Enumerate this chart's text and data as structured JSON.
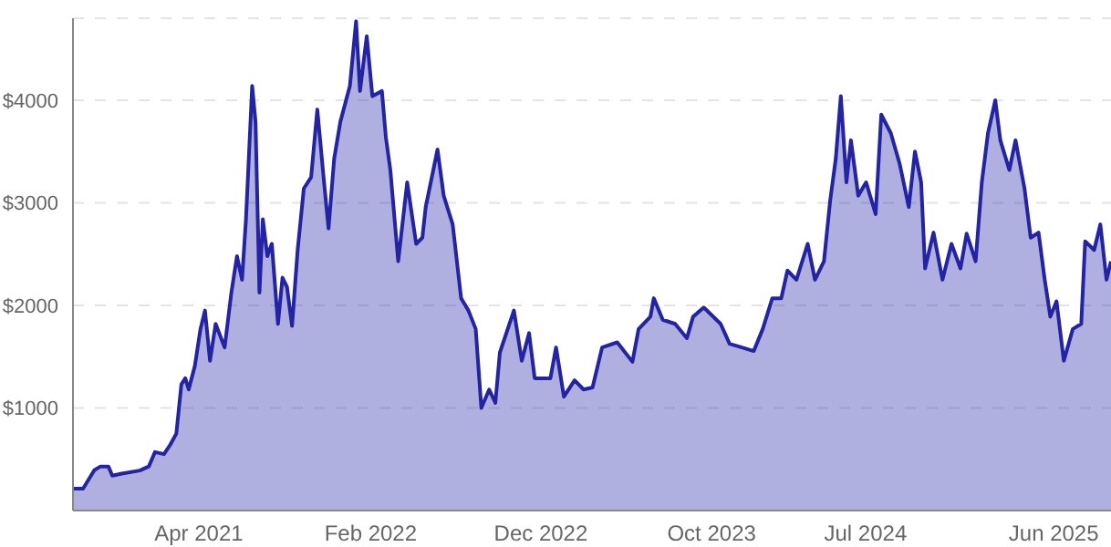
{
  "chart_data": {
    "type": "area",
    "x": [
      "2020-08-20",
      "2020-09-07",
      "2020-09-27",
      "2020-10-08",
      "2020-10-22",
      "2020-10-29",
      "2020-11-15",
      "2020-12-17",
      "2021-01-02",
      "2021-01-13",
      "2021-01-29",
      "2021-02-09",
      "2021-02-20",
      "2021-03-01",
      "2021-03-08",
      "2021-03-14",
      "2021-03-25",
      "2021-04-04",
      "2021-04-12",
      "2021-04-21",
      "2021-05-01",
      "2021-05-17",
      "2021-05-29",
      "2021-06-08",
      "2021-06-17",
      "2021-06-24",
      "2021-07-05",
      "2021-07-11",
      "2021-07-18",
      "2021-07-24",
      "2021-08-01",
      "2021-08-09",
      "2021-08-20",
      "2021-08-28",
      "2021-09-05",
      "2021-09-14",
      "2021-09-24",
      "2021-10-05",
      "2021-10-18",
      "2021-10-29",
      "2021-11-10",
      "2021-11-18",
      "2021-11-28",
      "2021-12-09",
      "2021-12-26",
      "2022-01-06",
      "2022-01-13",
      "2022-01-25",
      "2022-02-04",
      "2022-02-21",
      "2022-02-28",
      "2022-03-08",
      "2022-03-22",
      "2022-04-07",
      "2022-04-23",
      "2022-05-04",
      "2022-05-10",
      "2022-05-31",
      "2022-06-11",
      "2022-06-27",
      "2022-07-12",
      "2022-07-25",
      "2022-08-07",
      "2022-08-17",
      "2022-08-31",
      "2022-09-11",
      "2022-09-19",
      "2022-10-14",
      "2022-10-28",
      "2022-11-10",
      "2022-11-20",
      "2022-12-18",
      "2022-12-28",
      "2023-01-11",
      "2023-01-30",
      "2023-02-15",
      "2023-03-03",
      "2023-03-20",
      "2023-04-16",
      "2023-05-13",
      "2023-05-24",
      "2023-06-14",
      "2023-06-20",
      "2023-07-06",
      "2023-07-28",
      "2023-08-18",
      "2023-08-29",
      "2023-09-17",
      "2023-10-17",
      "2023-11-02",
      "2023-11-24",
      "2023-12-15",
      "2023-12-31",
      "2024-01-17",
      "2024-02-02",
      "2024-02-13",
      "2024-02-29",
      "2024-03-20",
      "2024-04-02",
      "2024-04-18",
      "2024-04-29",
      "2024-05-09",
      "2024-05-18",
      "2024-05-28",
      "2024-06-05",
      "2024-06-18",
      "2024-07-02",
      "2024-07-19",
      "2024-07-29",
      "2024-08-15",
      "2024-08-31",
      "2024-09-16",
      "2024-09-27",
      "2024-10-08",
      "2024-10-15",
      "2024-10-30",
      "2024-11-15",
      "2024-12-01",
      "2024-12-17",
      "2024-12-28",
      "2025-01-13",
      "2025-01-24",
      "2025-02-04",
      "2025-02-17",
      "2025-02-26",
      "2025-03-14",
      "2025-03-25",
      "2025-04-10",
      "2025-04-21",
      "2025-05-05",
      "2025-05-16",
      "2025-05-26",
      "2025-06-06",
      "2025-06-19",
      "2025-07-05",
      "2025-07-20",
      "2025-07-27",
      "2025-08-12",
      "2025-08-23",
      "2025-09-03",
      "2025-09-11"
    ],
    "values": [
      214,
      214,
      393,
      430,
      430,
      340,
      360,
      390,
      430,
      570,
      550,
      640,
      750,
      1230,
      1290,
      1180,
      1410,
      1770,
      1950,
      1460,
      1820,
      1590,
      2125,
      2480,
      2250,
      2840,
      4140,
      3790,
      2125,
      2840,
      2480,
      2600,
      1820,
      2270,
      2180,
      1800,
      2540,
      3140,
      3250,
      3910,
      3200,
      2750,
      3430,
      3790,
      4140,
      4770,
      4090,
      4625,
      4040,
      4090,
      3640,
      3320,
      2430,
      3200,
      2600,
      2660,
      2960,
      3520,
      3070,
      2790,
      2070,
      1950,
      1770,
      1000,
      1180,
      1050,
      1540,
      1950,
      1460,
      1730,
      1290,
      1290,
      1590,
      1110,
      1270,
      1180,
      1200,
      1590,
      1640,
      1450,
      1770,
      1890,
      2070,
      1860,
      1820,
      1680,
      1890,
      1980,
      1820,
      1625,
      1590,
      1555,
      1770,
      2070,
      2070,
      2340,
      2250,
      2600,
      2250,
      2430,
      3020,
      3430,
      4040,
      3200,
      3610,
      3070,
      3200,
      2890,
      3860,
      3680,
      3375,
      2960,
      3500,
      3200,
      2360,
      2710,
      2250,
      2600,
      2360,
      2700,
      2430,
      3200,
      3680,
      4000,
      3610,
      3320,
      3610,
      3140,
      2660,
      2710,
      2250,
      1890,
      2040,
      1460,
      1770,
      1820,
      2625,
      2540,
      2790,
      2250,
      2430
    ],
    "color": "#2323a8",
    "xlim": [
      "2020-08-20",
      "2025-09-11"
    ],
    "xticks": [
      {
        "value": "2021-04-01",
        "label": "Apr 2021"
      },
      {
        "value": "2022-02-01",
        "label": "Feb 2022"
      },
      {
        "value": "2022-12-01",
        "label": "Dec 2022"
      },
      {
        "value": "2023-10-01",
        "label": "Oct 2023"
      },
      {
        "value": "2024-07-01",
        "label": "Jul 2024"
      },
      {
        "value": "2025-06-01",
        "label": "Jun 2025"
      }
    ],
    "ylim": [
      0,
      4800
    ],
    "yticks": [
      {
        "value": 1000,
        "label": "$1000"
      },
      {
        "value": 2000,
        "label": "$2000"
      },
      {
        "value": 3000,
        "label": "$3000"
      },
      {
        "value": 4000,
        "label": "$4000"
      },
      {
        "value": 4800,
        "label": null
      }
    ],
    "grid": "y"
  }
}
